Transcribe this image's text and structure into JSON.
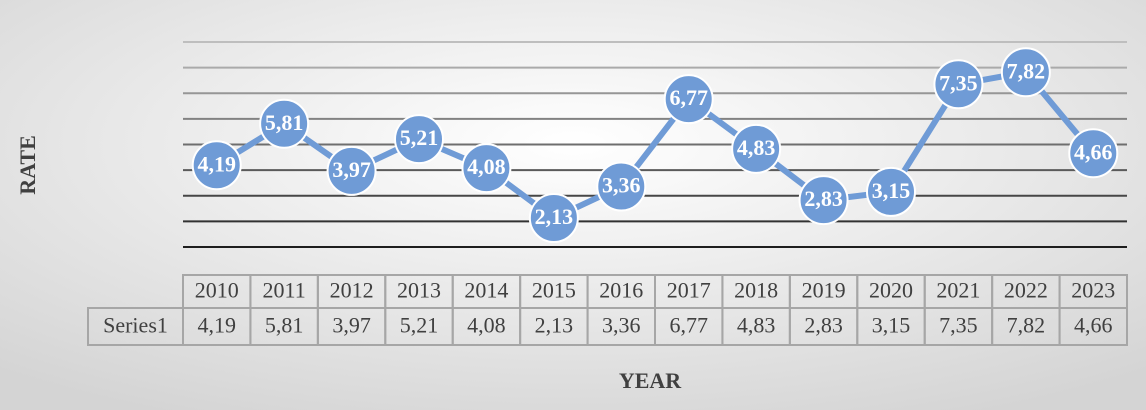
{
  "chart_data": {
    "type": "line",
    "x_label": "YEAR",
    "y_label": "RATE",
    "categories": [
      "2010",
      "2011",
      "2012",
      "2013",
      "2014",
      "2015",
      "2016",
      "2017",
      "2018",
      "2019",
      "2020",
      "2021",
      "2022",
      "2023"
    ],
    "series": [
      {
        "name": "Series1",
        "color": "#6f9bd6",
        "values": [
          4.19,
          5.81,
          3.97,
          5.21,
          4.08,
          2.13,
          3.36,
          6.77,
          4.83,
          2.83,
          3.15,
          7.35,
          7.82,
          4.66
        ],
        "value_labels": [
          "4,19",
          "5,81",
          "3,97",
          "5,21",
          "4,08",
          "2,13",
          "3,36",
          "6,77",
          "4,83",
          "2,83",
          "3,15",
          "7,35",
          "7,82",
          "4,66"
        ]
      }
    ],
    "ylim": [
      1,
      9
    ],
    "yticks": [
      1,
      2,
      3,
      4,
      5,
      6,
      7,
      8,
      9
    ],
    "grid": true
  }
}
